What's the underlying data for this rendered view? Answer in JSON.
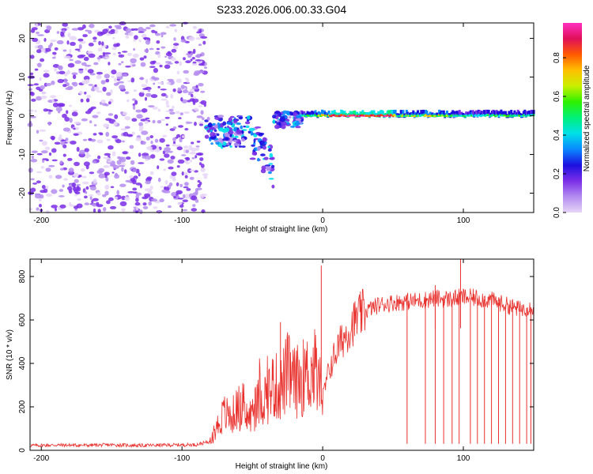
{
  "title": "S233.2026.006.00.33.G04",
  "colors": {
    "axis": "#000000",
    "snr_line": "#e8302c",
    "colormap": [
      "#ffffff",
      "#e6d6f7",
      "#b48cf0",
      "#7a2ee6",
      "#1c10e0",
      "#0a88ff",
      "#00e0e8",
      "#00f07a",
      "#2df000",
      "#c8f000",
      "#ffc000",
      "#ff5a00",
      "#e0105a",
      "#ff30c0"
    ]
  },
  "chart_data": [
    {
      "type": "heatmap",
      "title": "S233.2026.006.00.33.G04",
      "xlabel": "Height of straight line (km)",
      "ylabel": "Frequency (Hz)",
      "xlim": [
        -208,
        150
      ],
      "ylim": [
        -25,
        24
      ],
      "xticks": [
        -200,
        -100,
        0,
        100
      ],
      "yticks": [
        -20,
        -10,
        0,
        10,
        20
      ],
      "colorbar": {
        "label": "Normalized spectral amplitude",
        "range": [
          0,
          0.98
        ],
        "ticks": [
          0.0,
          0.2,
          0.4,
          0.6,
          0.8
        ]
      },
      "regions": [
        {
          "name": "noise",
          "x_range": [
            -208,
            -83
          ],
          "y_range": [
            -25,
            24
          ],
          "amplitude": "0.05-0.2 (scattered speckle)"
        },
        {
          "name": "multipath",
          "x_range": [
            -83,
            -15
          ],
          "y_range": [
            -21,
            5
          ],
          "amplitude": "0.1-0.4"
        },
        {
          "name": "tone",
          "x_range": [
            -15,
            150
          ],
          "frequency_hz": 0,
          "amplitude": "0.4-0.98",
          "peak_x_range": [
            5,
            50
          ]
        }
      ]
    },
    {
      "type": "line",
      "xlabel": "Height of straight line (km)",
      "ylabel": "SNR (10 * v/v)",
      "xlim": [
        -208,
        150
      ],
      "ylim": [
        0,
        880
      ],
      "xticks": [
        -200,
        -100,
        0,
        100
      ],
      "yticks": [
        0,
        200,
        400,
        600,
        800
      ],
      "series": [
        {
          "name": "SNR",
          "x": [
            -208,
            -190,
            -170,
            -150,
            -130,
            -110,
            -90,
            -80,
            -75,
            -70,
            -65,
            -60,
            -55,
            -50,
            -45,
            -40,
            -35,
            -30,
            -25,
            -20,
            -15,
            -10,
            -5,
            0,
            5,
            10,
            15,
            20,
            25,
            30,
            40,
            50,
            60,
            70,
            80,
            90,
            100,
            110,
            120,
            130,
            140,
            150
          ],
          "values": [
            22,
            24,
            23,
            25,
            22,
            24,
            26,
            40,
            110,
            170,
            150,
            200,
            150,
            160,
            230,
            250,
            300,
            280,
            360,
            310,
            330,
            350,
            370,
            240,
            380,
            460,
            520,
            570,
            610,
            640,
            670,
            680,
            685,
            690,
            700,
            695,
            705,
            700,
            690,
            670,
            650,
            660
          ]
        }
      ],
      "spikes_up": [
        [
          -30,
          590
        ],
        [
          -1,
          850
        ],
        [
          98,
          880
        ],
        [
          80,
          760
        ]
      ],
      "dropouts_x": [
        60,
        73,
        80,
        86,
        92,
        97,
        105,
        110,
        115,
        120,
        125,
        130,
        135,
        140,
        145,
        148
      ],
      "dropout_level": 30
    }
  ]
}
